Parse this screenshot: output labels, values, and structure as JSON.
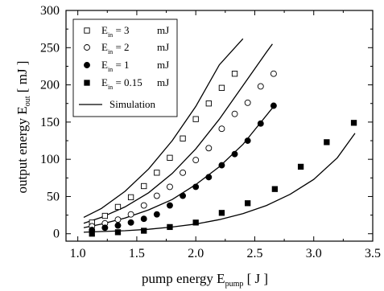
{
  "chart_data": {
    "type": "scatter",
    "xlim": [
      0.9,
      3.5
    ],
    "ylim": [
      -10,
      300
    ],
    "xticks": [
      1.0,
      1.5,
      2.0,
      2.5,
      3.0,
      3.5
    ],
    "yticks": [
      0,
      50,
      100,
      150,
      200,
      250,
      300
    ],
    "xlabel": {
      "main": "pump energy  E",
      "sub": "pump",
      "unit": "[ J ]"
    },
    "ylabel": {
      "main": "output energy  E",
      "sub": "out",
      "unit": "[ mJ ]"
    },
    "legend_position": "top-left",
    "series": [
      {
        "name": "E_in = 3 mJ",
        "label": {
          "pre": "E",
          "sub": "in",
          "post": " = 3",
          "unit": "mJ"
        },
        "marker": "open-square",
        "x": [
          1.12,
          1.23,
          1.34,
          1.45,
          1.56,
          1.67,
          1.78,
          1.89,
          2.0,
          2.11,
          2.22,
          2.33
        ],
        "y": [
          15,
          24,
          36,
          49,
          64,
          82,
          102,
          128,
          154,
          175,
          196,
          215
        ]
      },
      {
        "name": "E_in = 2 mJ",
        "label": {
          "pre": "E",
          "sub": "in",
          "post": " = 2",
          "unit": "mJ"
        },
        "marker": "open-circle",
        "x": [
          1.12,
          1.23,
          1.34,
          1.45,
          1.56,
          1.67,
          1.78,
          1.89,
          2.0,
          2.11,
          2.22,
          2.33,
          2.44,
          2.55,
          2.66
        ],
        "y": [
          10,
          14,
          19,
          26,
          38,
          51,
          63,
          82,
          99,
          115,
          141,
          161,
          176,
          198,
          215
        ]
      },
      {
        "name": "E_in = 1 mJ",
        "label": {
          "pre": "E",
          "sub": "in",
          "post": " = 1",
          "unit": "mJ"
        },
        "marker": "filled-circle",
        "x": [
          1.12,
          1.23,
          1.34,
          1.45,
          1.56,
          1.67,
          1.78,
          1.89,
          2.0,
          2.11,
          2.22,
          2.33,
          2.44,
          2.55,
          2.66
        ],
        "y": [
          5,
          8,
          11,
          15,
          20,
          26,
          38,
          51,
          63,
          76,
          92,
          107,
          125,
          148,
          172
        ]
      },
      {
        "name": "E_in = 0.15 mJ",
        "label": {
          "pre": "E",
          "sub": "in",
          "post": " = 0.15",
          "unit": "mJ"
        },
        "marker": "filled-square",
        "x": [
          1.12,
          1.34,
          1.56,
          1.78,
          2.0,
          2.22,
          2.44,
          2.67,
          2.89,
          3.11,
          3.34
        ],
        "y": [
          0,
          2,
          4,
          9,
          15,
          28,
          41,
          60,
          90,
          123,
          149
        ]
      }
    ],
    "simulation": {
      "label": "Simulation",
      "curves": [
        {
          "x": [
            1.05,
            1.2,
            1.4,
            1.6,
            1.8,
            2.0,
            2.2,
            2.4
          ],
          "y": [
            22,
            34,
            57,
            87,
            125,
            171,
            227,
            262
          ]
        },
        {
          "x": [
            1.05,
            1.2,
            1.4,
            1.6,
            1.8,
            2.0,
            2.2,
            2.4,
            2.6,
            2.65
          ],
          "y": [
            14,
            22,
            36,
            55,
            81,
            114,
            154,
            199,
            244,
            255
          ]
        },
        {
          "x": [
            1.05,
            1.2,
            1.4,
            1.6,
            1.8,
            2.0,
            2.2,
            2.4,
            2.65
          ],
          "y": [
            8,
            13,
            21,
            32,
            46,
            66,
            90,
            120,
            169
          ]
        },
        {
          "x": [
            1.05,
            1.2,
            1.4,
            1.6,
            1.8,
            2.0,
            2.2,
            2.4,
            2.6,
            2.8,
            3.0,
            3.2,
            3.35
          ],
          "y": [
            2,
            3,
            4,
            6,
            9,
            13,
            19,
            27,
            38,
            53,
            73,
            102,
            135
          ]
        }
      ]
    }
  }
}
